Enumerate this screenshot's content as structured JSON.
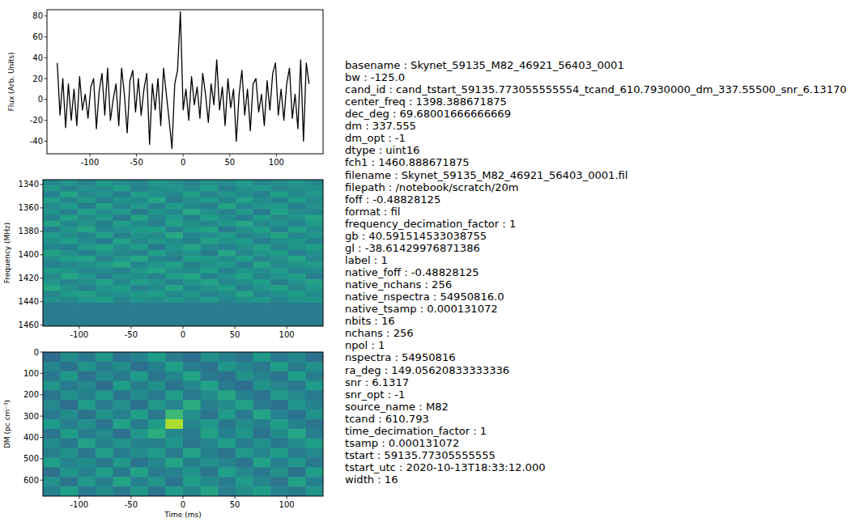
{
  "chart_data": [
    {
      "type": "line",
      "ylabel": "Flux (Arb. Units)",
      "color": "#000000",
      "xlim": [
        -146,
        150
      ],
      "ylim": [
        -52,
        86
      ],
      "xticks": [
        -100,
        -50,
        0,
        50,
        100
      ],
      "yticks": [
        -40,
        -20,
        0,
        20,
        40,
        60,
        80
      ],
      "x": [
        -135,
        -132,
        -129,
        -126,
        -123,
        -120,
        -117,
        -114,
        -111,
        -108,
        -105,
        -102,
        -99,
        -96,
        -93,
        -90,
        -87,
        -84,
        -81,
        -78,
        -75,
        -72,
        -69,
        -66,
        -63,
        -60,
        -57,
        -54,
        -51,
        -48,
        -45,
        -42,
        -39,
        -36,
        -33,
        -30,
        -27,
        -24,
        -21,
        -18,
        -15,
        -12,
        -9,
        -6,
        -3,
        0,
        3,
        6,
        9,
        12,
        15,
        18,
        21,
        24,
        27,
        30,
        33,
        36,
        39,
        42,
        45,
        48,
        51,
        54,
        57,
        60,
        63,
        66,
        69,
        72,
        75,
        78,
        81,
        84,
        87,
        90,
        93,
        96,
        99,
        102,
        105,
        108,
        111,
        114,
        117,
        120,
        123,
        126,
        129,
        132,
        135
      ],
      "values": [
        35,
        -15,
        20,
        -27,
        15,
        -20,
        10,
        -25,
        22,
        -10,
        5,
        -18,
        12,
        20,
        -28,
        8,
        25,
        -15,
        30,
        -20,
        0,
        15,
        -25,
        30,
        5,
        -32,
        18,
        28,
        -12,
        20,
        -15,
        10,
        25,
        -43,
        15,
        -10,
        20,
        -25,
        30,
        5,
        -20,
        -47,
        15,
        28,
        84,
        -10,
        10,
        -20,
        22,
        -5,
        12,
        -18,
        25,
        5,
        -22,
        15,
        -5,
        38,
        -10,
        12,
        -25,
        20,
        -8,
        10,
        -40,
        5,
        28,
        -15,
        10,
        -30,
        15,
        20,
        -12,
        5,
        -25,
        18,
        -10,
        25,
        35,
        -15,
        10,
        -20,
        15,
        30,
        -18,
        5,
        -28,
        38,
        -40,
        35,
        15
      ]
    },
    {
      "type": "heatmap",
      "ylabel": "Frequency (MHz)",
      "color": "viridis",
      "xlim": [
        -135,
        135
      ],
      "ylim": [
        1460.9,
        1335.9
      ],
      "zlim": [
        0,
        1
      ],
      "xticks": [
        -100,
        -50,
        0,
        50,
        100
      ],
      "yticks": [
        1340,
        1360,
        1380,
        1400,
        1420,
        1440,
        1460
      ],
      "cells": [
        [
          0.47,
          0.52,
          0.44,
          0.55,
          0.49,
          0.46,
          0.53,
          0.5,
          0.45,
          0.51,
          0.48,
          0.54,
          0.46,
          0.5,
          0.52,
          0.47
        ],
        [
          0.53,
          0.45,
          0.5,
          0.48,
          0.56,
          0.44,
          0.49,
          0.52,
          0.47,
          0.55,
          0.43,
          0.5,
          0.53,
          0.46,
          0.49,
          0.51
        ],
        [
          0.44,
          0.58,
          0.47,
          0.52,
          0.43,
          0.55,
          0.5,
          0.46,
          0.57,
          0.45,
          0.52,
          0.48,
          0.44,
          0.56,
          0.47,
          0.53
        ],
        [
          0.56,
          0.46,
          0.53,
          0.44,
          0.51,
          0.48,
          0.59,
          0.43,
          0.5,
          0.54,
          0.46,
          0.57,
          0.49,
          0.45,
          0.55,
          0.48
        ],
        [
          0.48,
          0.54,
          0.42,
          0.57,
          0.46,
          0.53,
          0.45,
          0.55,
          0.48,
          0.43,
          0.58,
          0.47,
          0.52,
          0.54,
          0.44,
          0.5
        ],
        [
          0.51,
          0.43,
          0.56,
          0.49,
          0.54,
          0.42,
          0.52,
          0.47,
          0.6,
          0.5,
          0.45,
          0.53,
          0.41,
          0.57,
          0.49,
          0.46
        ],
        [
          0.45,
          0.57,
          0.48,
          0.53,
          0.41,
          0.58,
          0.47,
          0.54,
          0.44,
          0.56,
          0.49,
          0.43,
          0.55,
          0.48,
          0.52,
          0.58
        ],
        [
          0.58,
          0.47,
          0.51,
          0.44,
          0.55,
          0.49,
          0.43,
          0.57,
          0.5,
          0.46,
          0.53,
          0.59,
          0.47,
          0.51,
          0.45,
          0.54
        ],
        [
          0.43,
          0.52,
          0.59,
          0.47,
          0.5,
          0.54,
          0.56,
          0.45,
          0.53,
          0.58,
          0.42,
          0.5,
          0.56,
          0.44,
          0.57,
          0.49
        ],
        [
          0.54,
          0.49,
          0.45,
          0.56,
          0.43,
          0.51,
          0.48,
          0.6,
          0.46,
          0.49,
          0.55,
          0.45,
          0.5,
          0.58,
          0.46,
          0.52
        ],
        [
          0.5,
          0.56,
          0.48,
          0.42,
          0.57,
          0.47,
          0.53,
          0.49,
          0.44,
          0.57,
          0.51,
          0.54,
          0.43,
          0.49,
          0.53,
          0.45
        ],
        [
          0.46,
          0.44,
          0.54,
          0.58,
          0.49,
          0.55,
          0.41,
          0.52,
          0.58,
          0.47,
          0.44,
          0.5,
          0.57,
          0.46,
          0.52,
          0.56
        ],
        [
          0.57,
          0.5,
          0.43,
          0.51,
          0.46,
          0.44,
          0.56,
          0.48,
          0.51,
          0.42,
          0.59,
          0.46,
          0.52,
          0.55,
          0.43,
          0.5
        ],
        [
          0.49,
          0.55,
          0.57,
          0.45,
          0.52,
          0.59,
          0.47,
          0.43,
          0.55,
          0.53,
          0.48,
          0.56,
          0.45,
          0.5,
          0.58,
          0.47
        ],
        [
          0.44,
          0.47,
          0.5,
          0.54,
          0.6,
          0.46,
          0.52,
          0.57,
          0.45,
          0.5,
          0.54,
          0.43,
          0.58,
          0.47,
          0.51,
          0.55
        ],
        [
          0.55,
          0.52,
          0.46,
          0.49,
          0.44,
          0.53,
          0.58,
          0.5,
          0.48,
          0.56,
          0.45,
          0.52,
          0.49,
          0.54,
          0.46,
          0.48
        ],
        [
          0.48,
          0.58,
          0.53,
          0.43,
          0.51,
          0.49,
          0.45,
          0.55,
          0.59,
          0.44,
          0.5,
          0.57,
          0.46,
          0.52,
          0.56,
          0.43
        ],
        [
          0.52,
          0.45,
          0.49,
          0.57,
          0.47,
          0.56,
          0.51,
          0.44,
          0.52,
          0.58,
          0.47,
          0.49,
          0.55,
          0.43,
          0.5,
          0.57
        ],
        [
          0.59,
          0.5,
          0.44,
          0.52,
          0.55,
          0.45,
          0.48,
          0.58,
          0.46,
          0.51,
          0.56,
          0.44,
          0.52,
          0.57,
          0.47,
          0.53
        ],
        [
          0.46,
          0.54,
          0.57,
          0.48,
          0.5,
          0.53,
          0.56,
          0.47,
          0.53,
          0.45,
          0.49,
          0.58,
          0.46,
          0.5,
          0.55,
          0.49
        ],
        [
          0.5,
          0.47,
          0.52,
          0.55,
          0.46,
          0.51,
          0.49,
          0.53,
          0.48,
          0.54,
          0.47,
          0.5,
          0.53,
          0.46,
          0.51,
          0.52
        ],
        [
          0.42,
          0.42,
          0.42,
          0.42,
          0.42,
          0.42,
          0.42,
          0.42,
          0.42,
          0.42,
          0.42,
          0.42,
          0.42,
          0.42,
          0.42,
          0.42
        ],
        [
          0.42,
          0.42,
          0.42,
          0.42,
          0.42,
          0.42,
          0.42,
          0.42,
          0.42,
          0.42,
          0.42,
          0.42,
          0.42,
          0.42,
          0.42,
          0.42
        ],
        [
          0.42,
          0.42,
          0.42,
          0.42,
          0.42,
          0.42,
          0.42,
          0.42,
          0.42,
          0.42,
          0.42,
          0.42,
          0.42,
          0.42,
          0.42,
          0.42
        ],
        [
          0.42,
          0.42,
          0.42,
          0.42,
          0.42,
          0.42,
          0.42,
          0.42,
          0.42,
          0.42,
          0.42,
          0.42,
          0.42,
          0.42,
          0.42,
          0.42
        ]
      ]
    },
    {
      "type": "heatmap",
      "xlabel": "Time (ms)",
      "ylabel": "DM (pc cm⁻³)",
      "color": "viridis",
      "xlim": [
        -135,
        135
      ],
      "ylim": [
        675,
        0
      ],
      "zlim": [
        0,
        1
      ],
      "xticks": [
        -100,
        -50,
        0,
        50,
        100
      ],
      "yticks": [
        0,
        100,
        200,
        300,
        400,
        500,
        600
      ],
      "cells": [
        [
          0.35,
          0.48,
          0.4,
          0.52,
          0.38,
          0.45,
          0.55,
          0.42,
          0.36,
          0.5,
          0.44,
          0.39,
          0.53,
          0.41,
          0.47,
          0.37
        ],
        [
          0.46,
          0.38,
          0.51,
          0.41,
          0.49,
          0.37,
          0.44,
          0.56,
          0.43,
          0.38,
          0.52,
          0.46,
          0.4,
          0.55,
          0.42,
          0.5
        ],
        [
          0.4,
          0.53,
          0.37,
          0.48,
          0.42,
          0.54,
          0.39,
          0.46,
          0.58,
          0.41,
          0.37,
          0.5,
          0.45,
          0.39,
          0.56,
          0.43
        ],
        [
          0.52,
          0.41,
          0.47,
          0.36,
          0.55,
          0.43,
          0.5,
          0.38,
          0.47,
          0.57,
          0.42,
          0.36,
          0.51,
          0.46,
          0.4,
          0.54
        ],
        [
          0.38,
          0.5,
          0.43,
          0.54,
          0.39,
          0.48,
          0.41,
          0.55,
          0.4,
          0.49,
          0.59,
          0.44,
          0.38,
          0.53,
          0.47,
          0.41
        ],
        [
          0.47,
          0.36,
          0.55,
          0.42,
          0.5,
          0.37,
          0.53,
          0.45,
          0.62,
          0.43,
          0.48,
          0.57,
          0.42,
          0.37,
          0.52,
          0.45
        ],
        [
          0.41,
          0.49,
          0.38,
          0.51,
          0.44,
          0.56,
          0.4,
          0.68,
          0.5,
          0.39,
          0.54,
          0.41,
          0.58,
          0.44,
          0.38,
          0.51
        ],
        [
          0.54,
          0.43,
          0.5,
          0.39,
          0.57,
          0.42,
          0.55,
          0.88,
          0.46,
          0.53,
          0.4,
          0.49,
          0.43,
          0.56,
          0.45,
          0.39
        ],
        [
          0.39,
          0.55,
          0.42,
          0.48,
          0.37,
          0.53,
          0.62,
          0.47,
          0.41,
          0.57,
          0.44,
          0.52,
          0.38,
          0.48,
          0.59,
          0.43
        ],
        [
          0.48,
          0.4,
          0.57,
          0.44,
          0.51,
          0.45,
          0.43,
          0.52,
          0.38,
          0.46,
          0.55,
          0.42,
          0.5,
          0.4,
          0.49,
          0.56
        ],
        [
          0.43,
          0.51,
          0.39,
          0.56,
          0.42,
          0.49,
          0.54,
          0.4,
          0.57,
          0.44,
          0.38,
          0.53,
          0.46,
          0.55,
          0.41,
          0.47
        ],
        [
          0.56,
          0.45,
          0.48,
          0.4,
          0.53,
          0.38,
          0.47,
          0.58,
          0.43,
          0.5,
          0.45,
          0.39,
          0.57,
          0.43,
          0.52,
          0.4
        ],
        [
          0.37,
          0.52,
          0.44,
          0.55,
          0.41,
          0.57,
          0.42,
          0.45,
          0.51,
          0.39,
          0.56,
          0.47,
          0.41,
          0.5,
          0.38,
          0.55
        ],
        [
          0.5,
          0.39,
          0.53,
          0.43,
          0.58,
          0.44,
          0.51,
          0.38,
          0.55,
          0.48,
          0.42,
          0.54,
          0.46,
          0.39,
          0.57,
          0.44
        ],
        [
          0.44,
          0.56,
          0.41,
          0.49,
          0.4,
          0.52,
          0.39,
          0.54,
          0.46,
          0.58,
          0.43,
          0.49,
          0.55,
          0.45,
          0.42,
          0.52
        ]
      ]
    }
  ],
  "info_lines": [
    "basename : Skynet_59135_M82_46921_56403_0001",
    "bw : -125.0",
    "cand_id : cand_tstart_59135.773055555554_tcand_610.7930000_dm_337.55500_snr_6.13170",
    "center_freq : 1398.388671875",
    "dec_deg : 69.68001666666669",
    "dm : 337.555",
    "dm_opt : -1",
    "dtype : uint16",
    "fch1 : 1460.888671875",
    "filename : Skynet_59135_M82_46921_56403_0001.fil",
    "filepath : /notebook/scratch/20m",
    "foff : -0.48828125",
    "format : fil",
    "frequency_decimation_factor : 1",
    "gb : 40.591514533038755",
    "gl : -38.61429976871386",
    "label : 1",
    "native_foff : -0.48828125",
    "native_nchans : 256",
    "native_nspectra : 54950816.0",
    "native_tsamp : 0.000131072",
    "nbits : 16",
    "nchans : 256",
    "npol : 1",
    "nspectra : 54950816",
    "ra_deg : 149.05620833333336",
    "snr : 6.1317",
    "snr_opt : -1",
    "source_name : M82",
    "tcand : 610.793",
    "time_decimation_factor : 1",
    "tsamp : 0.000131072",
    "tstart : 59135.77305555555",
    "tstart_utc : 2020-10-13T18:33:12.000",
    "width : 16"
  ]
}
